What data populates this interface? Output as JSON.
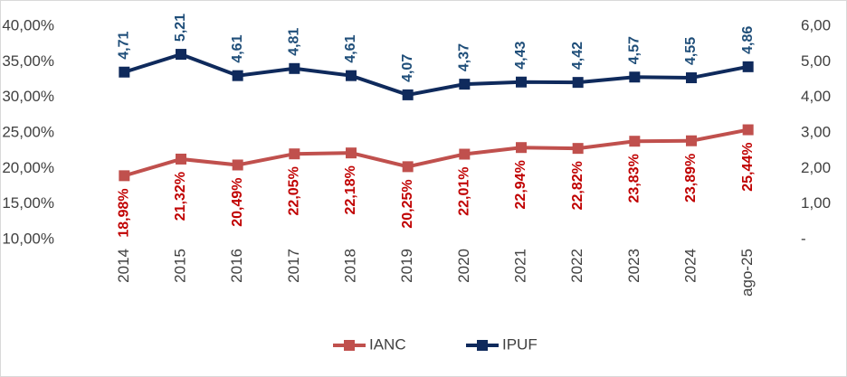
{
  "chart_data": {
    "type": "line",
    "categories": [
      "2014",
      "2015",
      "2016",
      "2017",
      "2018",
      "2019",
      "2020",
      "2021",
      "2022",
      "2023",
      "2024",
      "ago-25"
    ],
    "series": [
      {
        "name": "IANC",
        "color": "#c0504d",
        "axis": "y",
        "values": [
          18.98,
          21.32,
          20.49,
          22.05,
          22.18,
          20.25,
          22.01,
          22.94,
          22.82,
          23.83,
          23.89,
          25.44
        ],
        "value_labels": [
          "18,98%",
          "21,32%",
          "20,49%",
          "22,05%",
          "22,18%",
          "20,25%",
          "22,01%",
          "22,94%",
          "22,82%",
          "23,83%",
          "23,89%",
          "25,44%"
        ],
        "label_color": "#c00000"
      },
      {
        "name": "IPUF",
        "color": "#0f2a5c",
        "axis": "y2",
        "values": [
          4.71,
          5.21,
          4.61,
          4.81,
          4.61,
          4.07,
          4.37,
          4.43,
          4.42,
          4.57,
          4.55,
          4.86
        ],
        "value_labels": [
          "4,71",
          "5,21",
          "4,61",
          "4,81",
          "4,61",
          "4,07",
          "4,37",
          "4,43",
          "4,42",
          "4,57",
          "4,55",
          "4,86"
        ],
        "label_color": "#1f4e79"
      }
    ],
    "ylim": [
      10,
      40
    ],
    "yticks": [
      {
        "value": 10,
        "label": "10,00%"
      },
      {
        "value": 15,
        "label": "15,00%"
      },
      {
        "value": 20,
        "label": "20,00%"
      },
      {
        "value": 25,
        "label": "25,00%"
      },
      {
        "value": 30,
        "label": "30,00%"
      },
      {
        "value": 35,
        "label": "35,00%"
      },
      {
        "value": 40,
        "label": "40,00%"
      }
    ],
    "y2lim": [
      0,
      6
    ],
    "y2ticks": [
      {
        "value": 0,
        "label": "-"
      },
      {
        "value": 1,
        "label": "1,00"
      },
      {
        "value": 2,
        "label": "2,00"
      },
      {
        "value": 3,
        "label": "3,00"
      },
      {
        "value": 4,
        "label": "4,00"
      },
      {
        "value": 5,
        "label": "5,00"
      },
      {
        "value": 6,
        "label": "6,00"
      }
    ],
    "grid": false,
    "legend": "bottom"
  }
}
